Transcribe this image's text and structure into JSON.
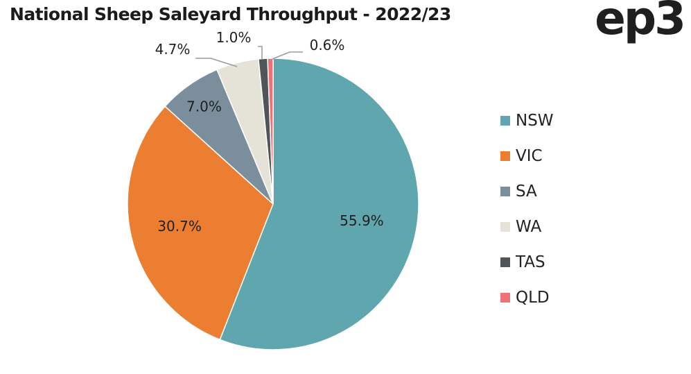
{
  "header": {
    "title": "National Sheep Saleyard Throughput - 2022/23",
    "logo_text": "ep3"
  },
  "chart_data": {
    "type": "pie",
    "title": "National Sheep Saleyard Throughput - 2022/23",
    "unit": "%",
    "slices": [
      {
        "label": "NSW",
        "value": 55.9,
        "display": "55.9%",
        "color": "#5fa6ae"
      },
      {
        "label": "VIC",
        "value": 30.7,
        "display": "30.7%",
        "color": "#ec7e31"
      },
      {
        "label": "SA",
        "value": 7.0,
        "display": "7.0%",
        "color": "#7a8f9b"
      },
      {
        "label": "WA",
        "value": 4.7,
        "display": "4.7%",
        "color": "#e5e3d8"
      },
      {
        "label": "TAS",
        "value": 1.0,
        "display": "1.0%",
        "color": "#4f5559"
      },
      {
        "label": "QLD",
        "value": 0.6,
        "display": "0.6%",
        "color": "#ef7176"
      }
    ],
    "legend": {
      "position": "right",
      "entries": [
        "NSW",
        "VIC",
        "SA",
        "WA",
        "TAS",
        "QLD"
      ]
    },
    "start_angle_deg": 0,
    "direction": "clockwise"
  }
}
